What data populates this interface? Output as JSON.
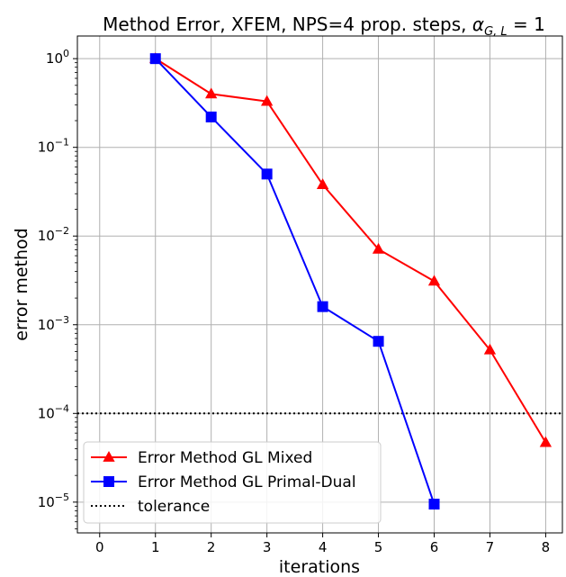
{
  "chart_data": {
    "type": "line",
    "title": "Method Error, XFEM, NPS=4 prop. steps, α_{G,L} = 1",
    "title_parts": {
      "main": "Method Error, XFEM, NPS=4 prop. steps, ",
      "alpha": "α",
      "subscript": "G, L",
      "tail": " = 1"
    },
    "xlabel": "iterations",
    "ylabel": "error method",
    "xlim": [
      -0.4,
      8.3
    ],
    "ylim": [
      4.5e-06,
      1.8
    ],
    "yscale": "log",
    "grid": true,
    "legend_position": "lower-left",
    "x_ticks": [
      "0",
      "1",
      "2",
      "3",
      "4",
      "5",
      "6",
      "7",
      "8"
    ],
    "y_ticks": [
      {
        "base": "10",
        "exp": "0",
        "value": 1
      },
      {
        "base": "10",
        "exp": "−1",
        "value": 0.1
      },
      {
        "base": "10",
        "exp": "−2",
        "value": 0.01
      },
      {
        "base": "10",
        "exp": "−3",
        "value": 0.001
      },
      {
        "base": "10",
        "exp": "−4",
        "value": 0.0001
      },
      {
        "base": "10",
        "exp": "−5",
        "value": 1e-05
      }
    ],
    "series": [
      {
        "name": "Error Method GL Mixed",
        "color": "#ff0000",
        "marker": "triangle",
        "x": [
          1,
          2,
          3,
          4,
          5,
          6,
          7,
          8
        ],
        "y": [
          1.0,
          0.4,
          0.33,
          0.038,
          0.0071,
          0.0031,
          0.00052,
          4.7e-05
        ]
      },
      {
        "name": "Error Method GL Primal-Dual",
        "color": "#0000ff",
        "marker": "square",
        "x": [
          1,
          2,
          3,
          4,
          5,
          6
        ],
        "y": [
          1.0,
          0.22,
          0.05,
          0.0016,
          0.00065,
          9.5e-06
        ]
      },
      {
        "name": "tolerance",
        "color": "#000000",
        "style": "dotted",
        "x": [
          -0.4,
          8.3
        ],
        "y": [
          0.0001,
          0.0001
        ]
      }
    ]
  }
}
